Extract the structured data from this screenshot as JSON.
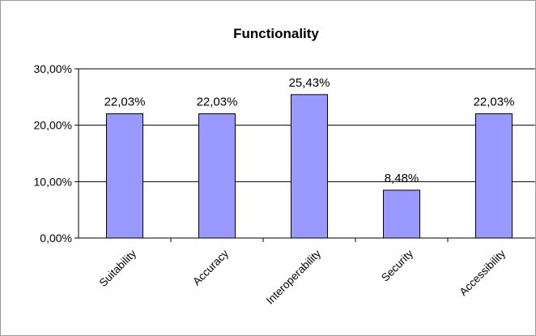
{
  "chart_data": {
    "type": "bar",
    "title": "Functionality",
    "xlabel": "",
    "ylabel": "",
    "categories": [
      "Suitability",
      "Accuracy",
      "Interoperability",
      "Security",
      "Accessibility"
    ],
    "values": [
      22.03,
      22.03,
      25.43,
      8.48,
      22.03
    ],
    "data_labels": [
      "22,03%",
      "22,03%",
      "25,43%",
      "8,48%",
      "22,03%"
    ],
    "ylim": [
      0,
      30
    ],
    "yticks": [
      0,
      10,
      20,
      30
    ],
    "ytick_labels": [
      "0,00%",
      "10,00%",
      "20,00%",
      "30,00%"
    ],
    "grid": true,
    "legend": "none",
    "colors": {
      "bar_fill": "#9999ff",
      "bar_stroke": "#000000",
      "grid": "#000000",
      "background": "#ffffff"
    }
  }
}
